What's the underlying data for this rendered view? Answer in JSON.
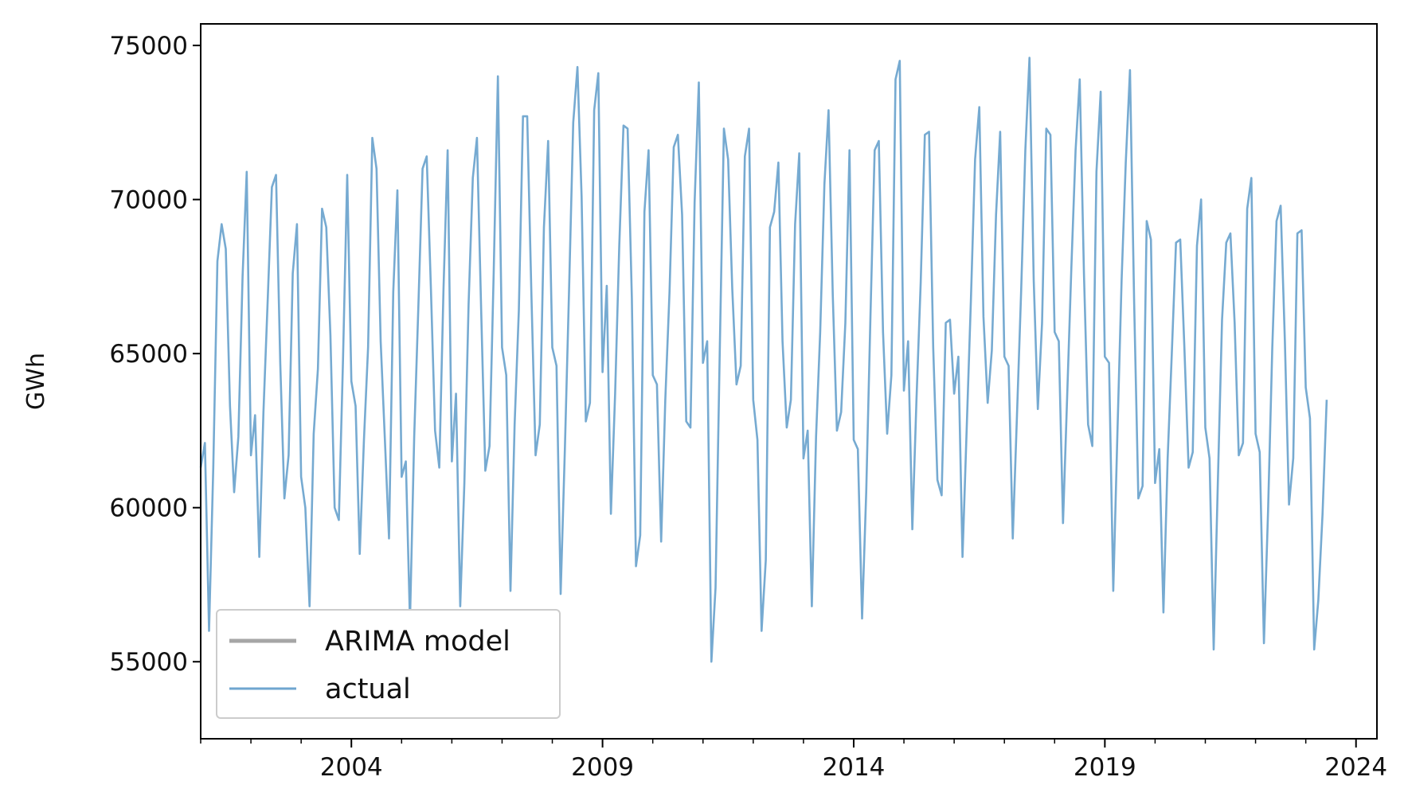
{
  "chart_data": {
    "type": "line",
    "title": "",
    "xlabel": "",
    "ylabel": "GWh",
    "x_start": "2001-01",
    "x_end": "2024-06",
    "x_frequency": "monthly",
    "xlim": [
      "2001-01",
      "2024-06"
    ],
    "ylim": [
      52500,
      75700
    ],
    "x_ticks": [
      "2004",
      "2009",
      "2014",
      "2019",
      "2024"
    ],
    "y_ticks": [
      55000,
      60000,
      65000,
      70000,
      75000
    ],
    "grid": false,
    "legend_position": "lower-left",
    "series": [
      {
        "name": "ARIMA model",
        "color": "#a6a6a6",
        "values": []
      },
      {
        "name": "actual",
        "color": "#6fa5cf",
        "values": [
          61300,
          62100,
          56000,
          61300,
          68000,
          69200,
          68400,
          63300,
          60500,
          62300,
          67500,
          70900,
          61700,
          63000,
          58400,
          63100,
          66700,
          70400,
          70800,
          64700,
          60300,
          61700,
          67600,
          69200,
          61000,
          60000,
          56800,
          62400,
          64500,
          69700,
          69100,
          65600,
          60000,
          59600,
          64800,
          70800,
          64100,
          63300,
          58500,
          62200,
          65200,
          72000,
          71000,
          65400,
          62200,
          59000,
          67000,
          70300,
          61000,
          61500,
          56300,
          62300,
          66500,
          71000,
          71400,
          67100,
          62500,
          61300,
          67100,
          71600,
          61500,
          63700,
          56800,
          60800,
          66600,
          70700,
          72000,
          66400,
          61200,
          62000,
          67600,
          74000,
          65200,
          64300,
          57300,
          62700,
          66400,
          72700,
          72700,
          67000,
          61700,
          62700,
          69100,
          71900,
          65200,
          64600,
          57200,
          61900,
          67000,
          72500,
          74300,
          70100,
          62800,
          63400,
          72900,
          74100,
          64400,
          67200,
          59800,
          63700,
          68500,
          72400,
          72300,
          66800,
          58100,
          59100,
          69600,
          71600,
          64300,
          64000,
          58900,
          63500,
          67000,
          71700,
          72100,
          69500,
          62800,
          62600,
          69900,
          73800,
          64700,
          65400,
          55000,
          57400,
          65100,
          72300,
          71300,
          67100,
          64000,
          64600,
          71400,
          72300,
          63500,
          62200,
          56000,
          58300,
          69100,
          69600,
          71200,
          65400,
          62600,
          63500,
          69200,
          71500,
          61600,
          62500,
          56800,
          62300,
          65700,
          70500,
          72900,
          66900,
          62500,
          63100,
          66000,
          71600,
          62200,
          61900,
          56400,
          60500,
          66200,
          71600,
          71900,
          65700,
          62400,
          64300,
          73900,
          74500,
          63800,
          65400,
          59300,
          63500,
          67300,
          72100,
          72200,
          65200,
          60900,
          60400,
          66000,
          66100,
          63700,
          64900,
          58400,
          62600,
          66700,
          71300,
          73000,
          66200,
          63400,
          65100,
          69500,
          72200,
          64900,
          64600,
          59000,
          63000,
          67000,
          71600,
          74600,
          67400,
          63200,
          66000,
          72300,
          72100,
          65700,
          65400,
          59500,
          63600,
          67800,
          71600,
          73900,
          67600,
          62700,
          62000,
          70900,
          73500,
          64900,
          64700,
          57300,
          62400,
          67400,
          71200,
          74200,
          66700,
          60300,
          60700,
          69300,
          68700,
          60800,
          61900,
          56600,
          61600,
          65000,
          68600,
          68700,
          65200,
          61300,
          61800,
          68500,
          70000,
          62600,
          61600,
          55400,
          60900,
          66100,
          68600,
          68900,
          66000,
          61700,
          62100,
          69700,
          70700,
          62400,
          61800,
          55600,
          59900,
          65200,
          69300,
          69800,
          65400,
          60100,
          61600,
          68900,
          69000,
          63900,
          62900,
          55400,
          57000,
          59800,
          63500
        ]
      }
    ]
  }
}
